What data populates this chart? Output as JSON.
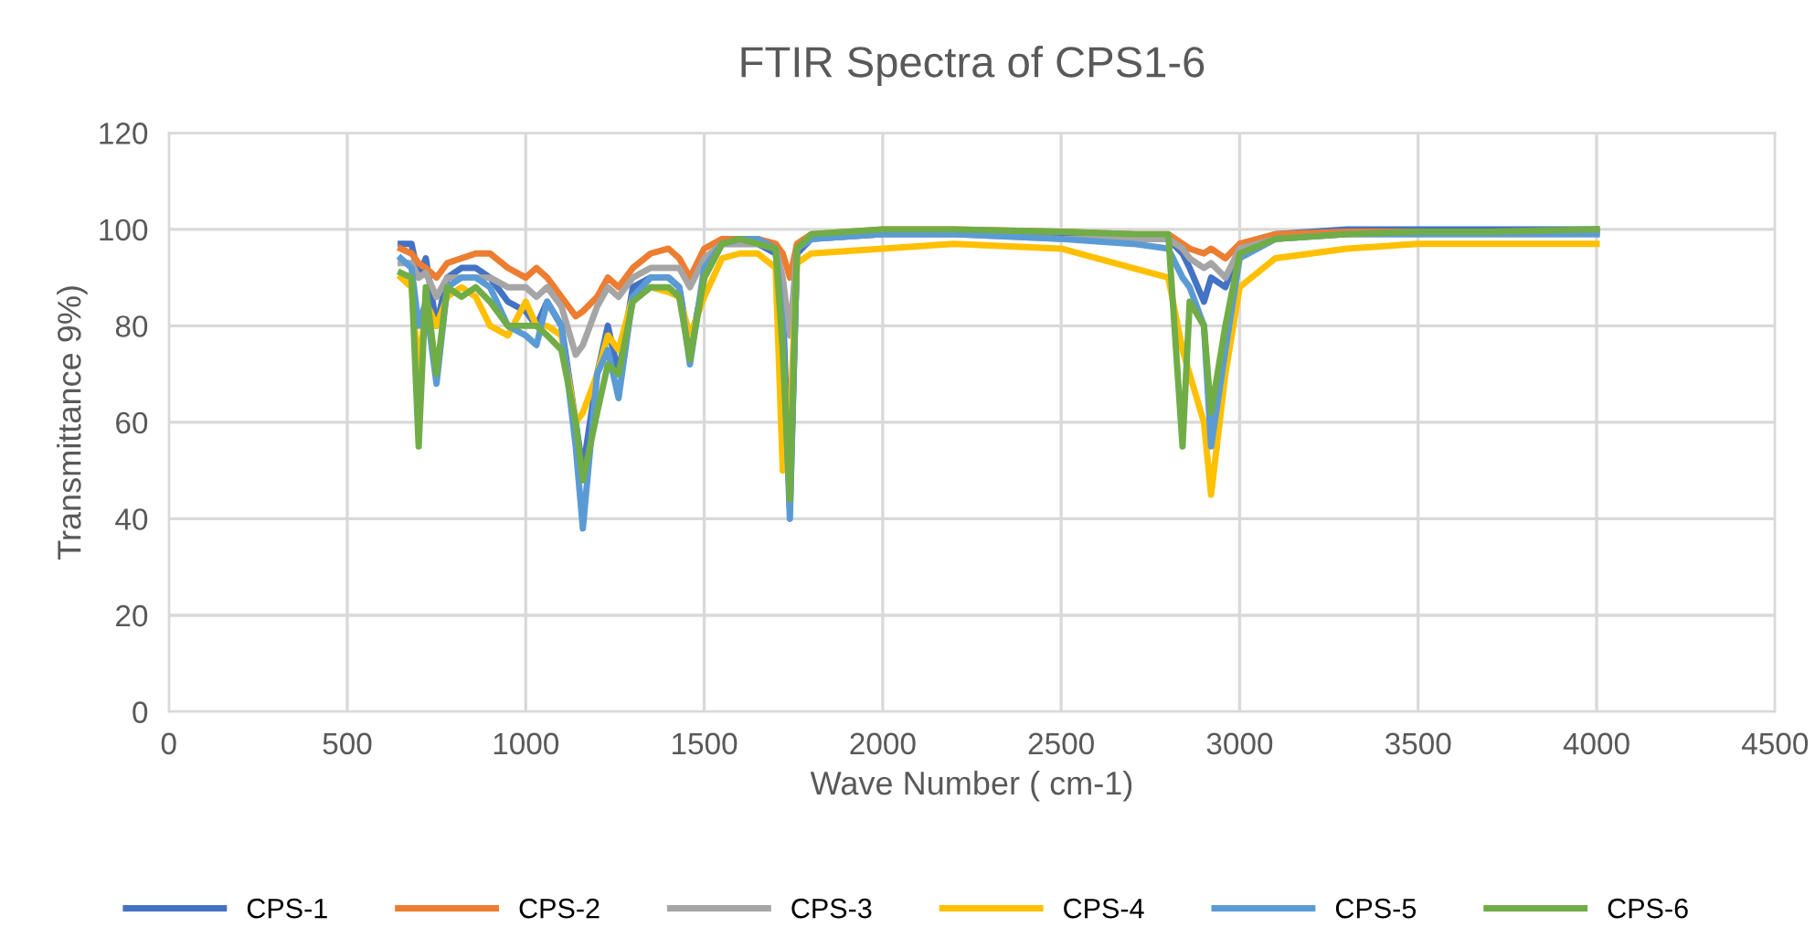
{
  "chart_data": {
    "type": "line",
    "title": "FTIR Spectra of CPS1-6",
    "xlabel": "Wave Number ( cm-1)",
    "ylabel": "Transmittance 9%)",
    "x": [
      650,
      680,
      700,
      720,
      750,
      780,
      820,
      860,
      900,
      950,
      1000,
      1030,
      1060,
      1100,
      1140,
      1160,
      1200,
      1230,
      1260,
      1300,
      1350,
      1400,
      1430,
      1460,
      1500,
      1550,
      1600,
      1650,
      1700,
      1720,
      1740,
      1760,
      1800,
      2000,
      2200,
      2500,
      2700,
      2800,
      2840,
      2860,
      2900,
      2920,
      2960,
      3000,
      3100,
      3300,
      3500,
      3700,
      4000
    ],
    "series": [
      {
        "name": "CPS-1",
        "color": "#4472c4",
        "values": [
          97,
          97,
          90,
          94,
          80,
          90,
          92,
          92,
          90,
          85,
          83,
          80,
          85,
          80,
          60,
          50,
          70,
          80,
          70,
          88,
          90,
          90,
          88,
          75,
          90,
          97,
          97,
          97,
          95,
          85,
          42,
          95,
          98,
          99,
          99,
          99,
          99,
          98,
          95,
          92,
          85,
          90,
          88,
          96,
          99,
          100,
          100,
          100,
          100
        ]
      },
      {
        "name": "CPS-2",
        "color": "#ed7d31",
        "values": [
          96,
          95,
          93,
          92,
          90,
          93,
          94,
          95,
          95,
          92,
          90,
          92,
          90,
          86,
          82,
          83,
          86,
          90,
          88,
          92,
          95,
          96,
          94,
          90,
          96,
          98,
          98,
          98,
          97,
          95,
          90,
          97,
          99,
          100,
          100,
          99.5,
          99,
          99,
          97,
          96,
          95,
          96,
          94,
          97,
          99,
          99.5,
          99.5,
          99.5,
          99.5
        ]
      },
      {
        "name": "CPS-3",
        "color": "#a5a5a5",
        "values": [
          93,
          93,
          90,
          91,
          86,
          90,
          90,
          90,
          90,
          88,
          88,
          86,
          88,
          84,
          74,
          76,
          84,
          88,
          86,
          90,
          92,
          92,
          92,
          88,
          94,
          97,
          97,
          97,
          96,
          90,
          78,
          96,
          98,
          99,
          99,
          98,
          98,
          98,
          96,
          94,
          92,
          93,
          90,
          96,
          98,
          99,
          99,
          99,
          99
        ]
      },
      {
        "name": "CPS-4",
        "color": "#ffc000",
        "values": [
          90,
          88,
          70,
          85,
          80,
          86,
          88,
          86,
          80,
          78,
          85,
          80,
          80,
          78,
          60,
          62,
          70,
          78,
          75,
          86,
          88,
          87,
          86,
          78,
          86,
          94,
          95,
          95,
          92,
          50,
          60,
          93,
          95,
          96,
          97,
          96,
          92,
          90,
          75,
          70,
          60,
          45,
          70,
          88,
          94,
          96,
          97,
          97,
          97
        ]
      },
      {
        "name": "CPS-5",
        "color": "#5b9bd5",
        "values": [
          94,
          92,
          80,
          85,
          68,
          88,
          90,
          90,
          88,
          80,
          78,
          76,
          85,
          80,
          55,
          38,
          70,
          75,
          65,
          86,
          90,
          90,
          88,
          72,
          92,
          97,
          98,
          98,
          96,
          80,
          40,
          96,
          98,
          99,
          99,
          98,
          97,
          96,
          90,
          88,
          80,
          55,
          75,
          94,
          98,
          99,
          99,
          99,
          99
        ]
      },
      {
        "name": "CPS-6",
        "color": "#70ad47",
        "values": [
          91,
          90,
          55,
          88,
          70,
          88,
          86,
          88,
          85,
          80,
          80,
          80,
          78,
          75,
          60,
          48,
          62,
          72,
          70,
          85,
          88,
          88,
          86,
          73,
          90,
          97,
          98,
          97,
          96,
          75,
          44,
          96,
          99,
          100,
          100,
          99.5,
          99,
          99,
          55,
          85,
          80,
          62,
          80,
          95,
          98,
          99,
          99.5,
          99.5,
          100
        ]
      }
    ],
    "xlim": [
      0,
      4500
    ],
    "xticks": [
      0,
      500,
      1000,
      1500,
      2000,
      2500,
      3000,
      3500,
      4000,
      4500
    ],
    "ylim": [
      0,
      120
    ],
    "yticks": [
      0,
      20,
      40,
      60,
      80,
      100,
      120
    ],
    "grid": true,
    "legend": "bottom",
    "marker": "none",
    "line_style": "solid"
  }
}
